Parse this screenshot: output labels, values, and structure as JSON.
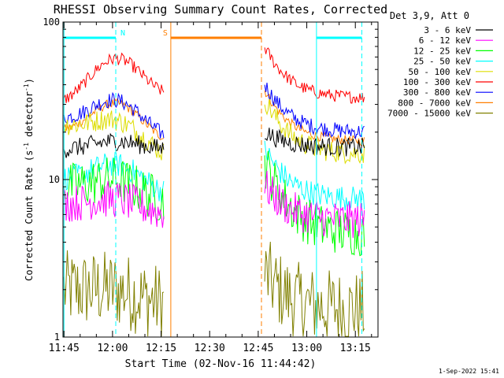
{
  "chart_data": {
    "type": "line",
    "title": "RHESSI Observing Summary Count Rates, Corrected",
    "xlabel": "Start Time (02-Nov-16 11:44:42)",
    "ylabel_main": "Corrected Count Rate (s",
    "ylabel_sup1": "-1",
    "ylabel_mid": " detector",
    "ylabel_sup2": "-1",
    "ylabel_end": ")",
    "yscale": "log",
    "ylim": [
      1,
      100
    ],
    "ytick_labels": [
      "1",
      "10",
      "100"
    ],
    "xlim": [
      "11:44:42",
      "13:22:00"
    ],
    "xtick_labels": [
      "11:45",
      "12:00",
      "12:15",
      "12:30",
      "12:45",
      "13:00",
      "13:15"
    ],
    "grid": false,
    "legend_title": "Det 3,9, Att 0",
    "legend_placement": "right, outside plot",
    "timestamp": "1-Sep-2022 15:41",
    "data_gap": [
      "12:18",
      "12:46"
    ],
    "series": [
      {
        "name": "3 - 6 keV",
        "color": "#000000",
        "start": 15.5,
        "end": 15.5,
        "peak": 17.5,
        "end2": 16.0,
        "noise": 0.06
      },
      {
        "name": "6 - 12 keV",
        "color": "#ff00ff",
        "start": 7.0,
        "end": 6.0,
        "peak": 8.0,
        "end2": 5.5,
        "noise": 0.12
      },
      {
        "name": "12 - 25 keV",
        "color": "#00ff00",
        "start": 9.0,
        "end": 7.0,
        "peak": 11.0,
        "end2": 4.5,
        "noise": 0.15
      },
      {
        "name": "25 - 50 keV",
        "color": "#00ffff",
        "start": 10.0,
        "end": 8.0,
        "peak": 13.5,
        "end2": 7.5,
        "noise": 0.08
      },
      {
        "name": "50 - 100 keV",
        "color": "#dddd00",
        "start": 22.0,
        "end": 14.0,
        "peak": 28.0,
        "end2": 14.5,
        "noise": 0.07
      },
      {
        "name": "100 - 300 keV",
        "color": "#ff0000",
        "start": 30.0,
        "end": 33.0,
        "peak": 60.0,
        "end2": 33.0,
        "noise": 0.04
      },
      {
        "name": "300 - 800 keV",
        "color": "#0000ff",
        "start": 24.0,
        "end": 18.0,
        "peak": 35.0,
        "end2": 20.0,
        "noise": 0.05
      },
      {
        "name": "800 - 7000 keV",
        "color": "#ff7f00",
        "start": 20.0,
        "end": 17.0,
        "peak": 32.0,
        "end2": 17.5,
        "noise": 0.03
      },
      {
        "name": "7000 - 15000 keV",
        "color": "#808000",
        "start": 2.0,
        "end": 1.6,
        "peak": 2.2,
        "end2": 1.5,
        "noise": 0.25
      }
    ],
    "annotations": [
      {
        "label": "N",
        "color": "#00ffff",
        "type": "night",
        "from": "11:45",
        "to": "12:01"
      },
      {
        "label": "S",
        "color": "#ff7f00",
        "type": "saa",
        "from": "12:18",
        "to": "12:46"
      },
      {
        "label": "",
        "color": "#00ffff",
        "type": "night",
        "from": "13:03",
        "to": "13:17"
      }
    ]
  }
}
